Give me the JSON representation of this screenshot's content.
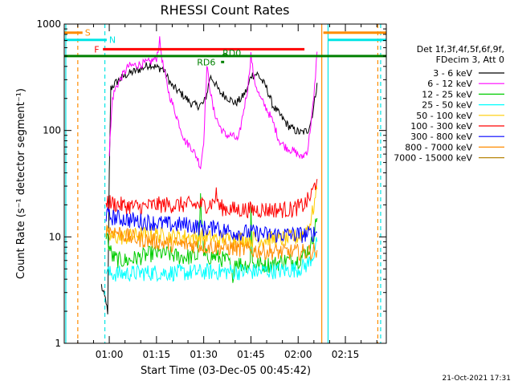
{
  "chart_data": {
    "type": "line",
    "title": "RHESSI Count Rates",
    "xlabel": "Start Time (03-Dec-05 00:45:42)",
    "ylabel": "Count Rate (s⁻¹ detector segment⁻¹)",
    "yscale": "log",
    "ylim": [
      1,
      1000
    ],
    "xlim_minutes": [
      45.7,
      148
    ],
    "x_ticks": [
      {
        "t": 60,
        "label": "01:00"
      },
      {
        "t": 75,
        "label": "01:15"
      },
      {
        "t": 90,
        "label": "01:30"
      },
      {
        "t": 105,
        "label": "01:45"
      },
      {
        "t": 120,
        "label": "02:00"
      },
      {
        "t": 135,
        "label": "02:15"
      }
    ],
    "y_ticks": [
      {
        "v": 1,
        "label": "1"
      },
      {
        "v": 10,
        "label": "10"
      },
      {
        "v": 100,
        "label": "100"
      },
      {
        "v": 1000,
        "label": "1000"
      }
    ],
    "legend": {
      "header": [
        "Det 1f,3f,4f,5f,6f,9f,",
        "FDecim 3, Att 0"
      ],
      "placement": "right"
    },
    "series": [
      {
        "name": "3 - 6 keV",
        "color": "#000000",
        "points": [
          [
            57.5,
            3.5
          ],
          [
            58,
            3.0
          ],
          [
            59,
            2.5
          ],
          [
            59.5,
            1.8
          ],
          [
            60,
            40
          ],
          [
            60.5,
            250
          ],
          [
            62,
            280
          ],
          [
            65,
            330
          ],
          [
            70,
            380
          ],
          [
            73,
            420
          ],
          [
            75,
            390
          ],
          [
            77,
            380
          ],
          [
            80,
            260
          ],
          [
            83,
            220
          ],
          [
            86,
            180
          ],
          [
            88,
            170
          ],
          [
            90,
            180
          ],
          [
            91,
            220
          ],
          [
            92,
            320
          ],
          [
            93,
            300
          ],
          [
            95,
            230
          ],
          [
            98,
            200
          ],
          [
            100,
            180
          ],
          [
            102,
            200
          ],
          [
            104,
            250
          ],
          [
            105,
            330
          ],
          [
            107,
            340
          ],
          [
            108,
            310
          ],
          [
            110,
            250
          ],
          [
            112,
            170
          ],
          [
            115,
            130
          ],
          [
            117,
            110
          ],
          [
            119,
            100
          ],
          [
            121,
            95
          ],
          [
            123,
            100
          ],
          [
            124,
            120
          ],
          [
            125,
            170
          ],
          [
            126,
            280
          ]
        ]
      },
      {
        "name": "6 - 12 keV",
        "color": "#ff00ff",
        "points": [
          [
            60,
            60
          ],
          [
            61,
            200
          ],
          [
            62,
            250
          ],
          [
            64,
            320
          ],
          [
            66,
            400
          ],
          [
            70,
            420
          ],
          [
            73,
            440
          ],
          [
            75,
            480
          ],
          [
            76,
            700
          ],
          [
            77,
            420
          ],
          [
            79,
            220
          ],
          [
            82,
            120
          ],
          [
            84,
            80
          ],
          [
            86,
            70
          ],
          [
            88,
            55
          ],
          [
            89,
            45
          ],
          [
            90,
            80
          ],
          [
            91,
            400
          ],
          [
            92,
            250
          ],
          [
            93,
            160
          ],
          [
            95,
            110
          ],
          [
            97,
            90
          ],
          [
            99,
            90
          ],
          [
            101,
            80
          ],
          [
            102,
            120
          ],
          [
            104,
            250
          ],
          [
            105,
            520
          ],
          [
            106,
            300
          ],
          [
            108,
            200
          ],
          [
            110,
            160
          ],
          [
            112,
            120
          ],
          [
            114,
            80
          ],
          [
            116,
            70
          ],
          [
            118,
            65
          ],
          [
            120,
            60
          ],
          [
            121,
            55
          ],
          [
            123,
            65
          ],
          [
            125,
            200
          ],
          [
            126,
            550
          ]
        ]
      },
      {
        "name": "12 - 25 keV",
        "color": "#00cc00",
        "points": [
          [
            59,
            11
          ],
          [
            60,
            8
          ],
          [
            61,
            6.5
          ],
          [
            63,
            6
          ],
          [
            66,
            6
          ],
          [
            70,
            6.5
          ],
          [
            74,
            7
          ],
          [
            78,
            7
          ],
          [
            82,
            6.5
          ],
          [
            86,
            6.5
          ],
          [
            88,
            6.5
          ],
          [
            89,
            22
          ],
          [
            90,
            6.5
          ],
          [
            94,
            6.5
          ],
          [
            97,
            6
          ],
          [
            98,
            6
          ],
          [
            99,
            4
          ],
          [
            100,
            6
          ],
          [
            102,
            5.5
          ],
          [
            104,
            5.5
          ],
          [
            104.8,
            5.5
          ],
          [
            105,
            22
          ],
          [
            105.5,
            5.5
          ],
          [
            108,
            5.5
          ],
          [
            112,
            5.5
          ],
          [
            116,
            6
          ],
          [
            120,
            6
          ],
          [
            122,
            7
          ],
          [
            124,
            8
          ],
          [
            126,
            15
          ]
        ]
      },
      {
        "name": "25 - 50 keV",
        "color": "#00ffff",
        "points": [
          [
            59,
            5
          ],
          [
            60,
            4.5
          ],
          [
            62,
            4.5
          ],
          [
            65,
            4.5
          ],
          [
            70,
            4.6
          ],
          [
            75,
            4.6
          ],
          [
            80,
            4.6
          ],
          [
            85,
            4.6
          ],
          [
            90,
            4.7
          ],
          [
            95,
            4.7
          ],
          [
            100,
            4.7
          ],
          [
            105,
            4.7
          ],
          [
            110,
            4.8
          ],
          [
            115,
            4.8
          ],
          [
            120,
            5
          ],
          [
            123,
            5.5
          ],
          [
            125,
            7
          ],
          [
            126,
            9
          ]
        ]
      },
      {
        "name": "50 - 100 keV",
        "color": "#ffcc00",
        "points": [
          [
            59,
            11
          ],
          [
            60,
            10
          ],
          [
            62,
            10
          ],
          [
            66,
            10
          ],
          [
            70,
            10.5
          ],
          [
            75,
            10.5
          ],
          [
            80,
            10
          ],
          [
            85,
            10
          ],
          [
            90,
            10
          ],
          [
            95,
            9.5
          ],
          [
            100,
            9.5
          ],
          [
            105,
            9.5
          ],
          [
            110,
            9.5
          ],
          [
            115,
            9.5
          ],
          [
            120,
            10
          ],
          [
            122,
            11
          ],
          [
            124,
            14
          ],
          [
            126,
            28
          ]
        ]
      },
      {
        "name": "100 - 300 keV",
        "color": "#ff0000",
        "points": [
          [
            59,
            22
          ],
          [
            60,
            21
          ],
          [
            63,
            20
          ],
          [
            66,
            19.5
          ],
          [
            70,
            19
          ],
          [
            75,
            20
          ],
          [
            80,
            20
          ],
          [
            85,
            20
          ],
          [
            88,
            20
          ],
          [
            91,
            20
          ],
          [
            93,
            21
          ],
          [
            94,
            25
          ],
          [
            95,
            19
          ],
          [
            97,
            18.5
          ],
          [
            100,
            18
          ],
          [
            105,
            18
          ],
          [
            110,
            18
          ],
          [
            115,
            18
          ],
          [
            118,
            18
          ],
          [
            120,
            19
          ],
          [
            122,
            20
          ],
          [
            124,
            24
          ],
          [
            126,
            35
          ]
        ]
      },
      {
        "name": "300 - 800 keV",
        "color": "#0000ff",
        "points": [
          [
            59,
            16
          ],
          [
            60,
            15.5
          ],
          [
            63,
            15
          ],
          [
            66,
            14.5
          ],
          [
            70,
            14
          ],
          [
            75,
            13.5
          ],
          [
            80,
            13
          ],
          [
            85,
            13
          ],
          [
            88,
            12.5
          ],
          [
            90,
            12
          ],
          [
            93,
            12
          ],
          [
            94,
            14
          ],
          [
            95,
            11.5
          ],
          [
            97,
            11.5
          ],
          [
            100,
            11
          ],
          [
            105,
            11
          ],
          [
            110,
            10.5
          ],
          [
            115,
            10.5
          ],
          [
            120,
            10.5
          ],
          [
            123,
            10.5
          ],
          [
            126,
            11
          ]
        ]
      },
      {
        "name": "800 - 7000 keV",
        "color": "#ff8c00",
        "points": [
          [
            59,
            12
          ],
          [
            60,
            11.5
          ],
          [
            63,
            11
          ],
          [
            66,
            10
          ],
          [
            70,
            9.5
          ],
          [
            75,
            9
          ],
          [
            80,
            8.5
          ],
          [
            85,
            8.5
          ],
          [
            90,
            8.2
          ],
          [
            95,
            8
          ],
          [
            100,
            7.8
          ],
          [
            105,
            7.5
          ],
          [
            110,
            7.3
          ],
          [
            115,
            7.2
          ],
          [
            120,
            7.2
          ],
          [
            123,
            7.2
          ],
          [
            126,
            7.5
          ]
        ]
      },
      {
        "name": "7000 - 15000 keV",
        "color": "#b8860b",
        "points": []
      }
    ],
    "annotations": [
      {
        "label": "S",
        "color": "#ff8c00",
        "type": "bar",
        "t0": 45.7,
        "t1": 51.5,
        "y": 830
      },
      {
        "label": "N",
        "color": "#00e5e5",
        "type": "bar",
        "t0": 45.7,
        "t1": 59.2,
        "y": 710
      },
      {
        "label": "F",
        "color": "#ff0000",
        "type": "bar",
        "t0": 58,
        "t1": 122,
        "y": 580
      },
      {
        "label": "RD0",
        "color": "#008000",
        "type": "bar",
        "t0": 96,
        "t1": 97.5,
        "y": 510
      },
      {
        "label": "RD6",
        "color": "#008000",
        "type": "bar",
        "t0": 95.5,
        "t1": 96.5,
        "y": 440
      },
      {
        "label": "",
        "color": "#008000",
        "type": "bar",
        "t0": 45.7,
        "t1": 148,
        "y": 500
      },
      {
        "label": "",
        "color": "#ff8c00",
        "type": "bar",
        "t0": 128,
        "t1": 148,
        "y": 830
      },
      {
        "label": "",
        "color": "#00e5e5",
        "type": "bar",
        "t0": 129.5,
        "t1": 148,
        "y": 710
      }
    ],
    "vlines": [
      {
        "t": 46.2,
        "color": "#00e5e5",
        "style": "solid"
      },
      {
        "t": 50,
        "color": "#ff8c00",
        "style": "dashed"
      },
      {
        "t": 58.6,
        "color": "#00e5e5",
        "style": "dashed"
      },
      {
        "t": 127.5,
        "color": "#ff8c00",
        "style": "solid"
      },
      {
        "t": 129.5,
        "color": "#00e5e5",
        "style": "solid"
      },
      {
        "t": 145.3,
        "color": "#ff8c00",
        "style": "dashed"
      },
      {
        "t": 146.2,
        "color": "#00e5e5",
        "style": "dashed"
      }
    ]
  },
  "timestamp": "21-Oct-2021 17:31"
}
